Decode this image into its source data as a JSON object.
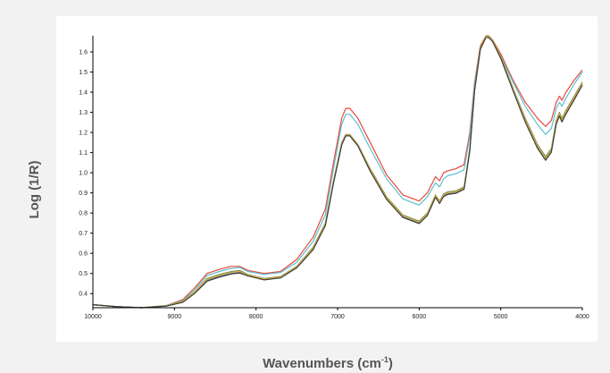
{
  "chart_data": {
    "type": "line",
    "title": "",
    "xlabel": "Wavenumbers (cm",
    "xlabel_sup": "-1",
    "xlabel_close": ")",
    "ylabel": "Log (1/R)",
    "xlim": [
      10000,
      4000
    ],
    "ylim": [
      0.33,
      1.68
    ],
    "x_reversed": true,
    "grid": false,
    "legend": "none",
    "x_ticks": [
      10000,
      9000,
      8000,
      7000,
      6000,
      5000,
      4000
    ],
    "x_tick_labels": [
      "10000",
      "9000",
      "8000",
      "7000",
      "6000",
      "5000",
      "4000"
    ],
    "y_ticks": [
      0.4,
      0.5,
      0.6,
      0.7,
      0.8,
      0.9,
      1.0,
      1.1,
      1.2,
      1.3,
      1.4,
      1.5,
      1.6
    ],
    "y_tick_labels": [
      "0.4",
      "0.5",
      "0.6",
      "0.7",
      "0.8",
      "0.9",
      "1.0",
      "1.1",
      "1.2",
      "1.3",
      "1.4",
      "1.5",
      "1.6"
    ],
    "x": [
      10000,
      9700,
      9400,
      9100,
      8900,
      8750,
      8600,
      8450,
      8300,
      8200,
      8100,
      7900,
      7700,
      7500,
      7300,
      7150,
      7050,
      6950,
      6900,
      6850,
      6750,
      6600,
      6400,
      6200,
      6000,
      5900,
      5800,
      5750,
      5700,
      5650,
      5550,
      5450,
      5380,
      5320,
      5250,
      5180,
      5150,
      5100,
      5000,
      4850,
      4700,
      4550,
      4450,
      4380,
      4320,
      4280,
      4250,
      4200,
      4100,
      4000
    ],
    "series": [
      {
        "color": "#e8483b",
        "values": [
          0.345,
          0.335,
          0.33,
          0.34,
          0.37,
          0.43,
          0.5,
          0.52,
          0.535,
          0.535,
          0.515,
          0.5,
          0.51,
          0.57,
          0.68,
          0.82,
          1.05,
          1.27,
          1.32,
          1.32,
          1.27,
          1.15,
          0.99,
          0.89,
          0.86,
          0.9,
          0.98,
          0.96,
          1.0,
          1.01,
          1.02,
          1.04,
          1.2,
          1.45,
          1.63,
          1.68,
          1.68,
          1.66,
          1.59,
          1.46,
          1.35,
          1.27,
          1.23,
          1.26,
          1.35,
          1.38,
          1.36,
          1.4,
          1.46,
          1.51
        ]
      },
      {
        "color": "#5cbfcf",
        "values": [
          0.345,
          0.335,
          0.33,
          0.34,
          0.365,
          0.42,
          0.49,
          0.51,
          0.525,
          0.53,
          0.51,
          0.495,
          0.505,
          0.555,
          0.66,
          0.79,
          1.02,
          1.24,
          1.29,
          1.29,
          1.24,
          1.12,
          0.97,
          0.87,
          0.84,
          0.88,
          0.95,
          0.93,
          0.97,
          0.985,
          0.995,
          1.015,
          1.18,
          1.44,
          1.62,
          1.675,
          1.675,
          1.655,
          1.58,
          1.45,
          1.33,
          1.24,
          1.19,
          1.22,
          1.32,
          1.35,
          1.33,
          1.37,
          1.44,
          1.5
        ]
      },
      {
        "color": "#7a8c5c",
        "values": [
          0.345,
          0.335,
          0.33,
          0.34,
          0.362,
          0.41,
          0.475,
          0.495,
          0.51,
          0.515,
          0.495,
          0.475,
          0.485,
          0.535,
          0.63,
          0.75,
          0.96,
          1.15,
          1.19,
          1.19,
          1.14,
          1.02,
          0.88,
          0.79,
          0.76,
          0.8,
          0.89,
          0.86,
          0.895,
          0.905,
          0.91,
          0.93,
          1.12,
          1.42,
          1.62,
          1.68,
          1.68,
          1.66,
          1.58,
          1.42,
          1.27,
          1.14,
          1.08,
          1.12,
          1.26,
          1.3,
          1.27,
          1.31,
          1.38,
          1.45
        ]
      },
      {
        "color": "#3a5fb8",
        "values": [
          0.345,
          0.335,
          0.33,
          0.338,
          0.358,
          0.405,
          0.465,
          0.485,
          0.5,
          0.505,
          0.49,
          0.47,
          0.48,
          0.53,
          0.62,
          0.74,
          0.95,
          1.14,
          1.185,
          1.185,
          1.135,
          1.01,
          0.87,
          0.78,
          0.75,
          0.79,
          0.88,
          0.85,
          0.885,
          0.895,
          0.9,
          0.92,
          1.11,
          1.41,
          1.615,
          1.675,
          1.675,
          1.655,
          1.57,
          1.41,
          1.255,
          1.125,
          1.065,
          1.105,
          1.245,
          1.285,
          1.255,
          1.295,
          1.365,
          1.44
        ]
      },
      {
        "color": "#d9b338",
        "values": [
          0.345,
          0.335,
          0.33,
          0.339,
          0.36,
          0.408,
          0.47,
          0.49,
          0.505,
          0.51,
          0.492,
          0.472,
          0.482,
          0.532,
          0.625,
          0.745,
          0.955,
          1.145,
          1.188,
          1.188,
          1.138,
          1.015,
          0.875,
          0.785,
          0.755,
          0.795,
          0.885,
          0.855,
          0.89,
          0.9,
          0.905,
          0.925,
          1.115,
          1.415,
          1.618,
          1.678,
          1.678,
          1.658,
          1.575,
          1.415,
          1.262,
          1.132,
          1.072,
          1.112,
          1.252,
          1.292,
          1.262,
          1.302,
          1.372,
          1.445
        ]
      },
      {
        "color": "#3d3d3d",
        "values": [
          0.345,
          0.335,
          0.33,
          0.338,
          0.356,
          0.402,
          0.462,
          0.482,
          0.498,
          0.502,
          0.488,
          0.468,
          0.478,
          0.528,
          0.618,
          0.738,
          0.948,
          1.138,
          1.183,
          1.183,
          1.133,
          1.008,
          0.868,
          0.778,
          0.748,
          0.788,
          0.878,
          0.848,
          0.882,
          0.892,
          0.898,
          0.918,
          1.108,
          1.408,
          1.612,
          1.672,
          1.672,
          1.652,
          1.568,
          1.408,
          1.252,
          1.122,
          1.062,
          1.102,
          1.242,
          1.282,
          1.252,
          1.292,
          1.362,
          1.435
        ]
      }
    ]
  }
}
